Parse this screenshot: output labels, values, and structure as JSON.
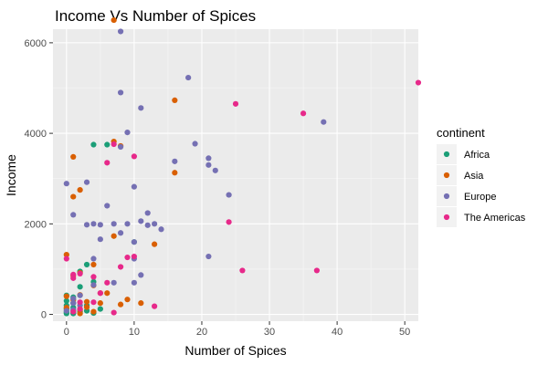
{
  "chart_data": {
    "type": "scatter",
    "title": "Income Vs Number of Spices",
    "xlabel": "Number of Spices",
    "ylabel": "Income",
    "xlim": [
      -2,
      52
    ],
    "ylim": [
      -150,
      6300
    ],
    "x_ticks": [
      0,
      10,
      20,
      30,
      40,
      50
    ],
    "y_ticks": [
      0,
      2000,
      4000,
      6000
    ],
    "grid": true,
    "legend": {
      "title": "continent",
      "placement": "right"
    },
    "series": [
      {
        "name": "Africa",
        "color": "#1b9e77",
        "points": [
          [
            0,
            50
          ],
          [
            0,
            120
          ],
          [
            0,
            200
          ],
          [
            0,
            300
          ],
          [
            0,
            420
          ],
          [
            0,
            20
          ],
          [
            1,
            30
          ],
          [
            1,
            80
          ],
          [
            1,
            150
          ],
          [
            1,
            250
          ],
          [
            1,
            380
          ],
          [
            1,
            20
          ],
          [
            2,
            60
          ],
          [
            2,
            610
          ],
          [
            2,
            950
          ],
          [
            3,
            80
          ],
          [
            3,
            1100
          ],
          [
            3,
            200
          ],
          [
            4,
            720
          ],
          [
            4,
            3750
          ],
          [
            4,
            30
          ],
          [
            5,
            120
          ],
          [
            6,
            3750
          ],
          [
            10,
            1600
          ]
        ]
      },
      {
        "name": "Asia",
        "color": "#d95f02",
        "points": [
          [
            0,
            1320
          ],
          [
            0,
            400
          ],
          [
            0,
            150
          ],
          [
            1,
            3480
          ],
          [
            1,
            2600
          ],
          [
            1,
            850
          ],
          [
            1,
            320
          ],
          [
            2,
            2750
          ],
          [
            2,
            920
          ],
          [
            2,
            430
          ],
          [
            2,
            100
          ],
          [
            2,
            20
          ],
          [
            3,
            280
          ],
          [
            3,
            160
          ],
          [
            4,
            1100
          ],
          [
            4,
            640
          ],
          [
            4,
            60
          ],
          [
            5,
            470
          ],
          [
            5,
            250
          ],
          [
            6,
            470
          ],
          [
            7,
            6500
          ],
          [
            7,
            3820
          ],
          [
            7,
            1730
          ],
          [
            8,
            3720
          ],
          [
            8,
            220
          ],
          [
            9,
            330
          ],
          [
            11,
            250
          ],
          [
            13,
            1550
          ],
          [
            16,
            4730
          ],
          [
            16,
            3130
          ]
        ]
      },
      {
        "name": "Europe",
        "color": "#7570b3",
        "points": [
          [
            0,
            2890
          ],
          [
            0,
            80
          ],
          [
            1,
            2200
          ],
          [
            1,
            350
          ],
          [
            1,
            250
          ],
          [
            1,
            100
          ],
          [
            2,
            420
          ],
          [
            2,
            200
          ],
          [
            3,
            2920
          ],
          [
            3,
            1980
          ],
          [
            4,
            1230
          ],
          [
            4,
            2000
          ],
          [
            4,
            650
          ],
          [
            5,
            1660
          ],
          [
            5,
            1980
          ],
          [
            6,
            2400
          ],
          [
            7,
            2000
          ],
          [
            7,
            700
          ],
          [
            8,
            6250
          ],
          [
            8,
            4900
          ],
          [
            8,
            3700
          ],
          [
            8,
            1800
          ],
          [
            9,
            4020
          ],
          [
            9,
            2000
          ],
          [
            10,
            2820
          ],
          [
            10,
            1600
          ],
          [
            10,
            1230
          ],
          [
            10,
            700
          ],
          [
            11,
            4560
          ],
          [
            11,
            2060
          ],
          [
            11,
            870
          ],
          [
            12,
            2240
          ],
          [
            12,
            1970
          ],
          [
            13,
            2000
          ],
          [
            14,
            1880
          ],
          [
            16,
            3380
          ],
          [
            18,
            5230
          ],
          [
            19,
            3770
          ],
          [
            21,
            3450
          ],
          [
            21,
            3300
          ],
          [
            21,
            1280
          ],
          [
            22,
            3180
          ],
          [
            24,
            2640
          ],
          [
            38,
            4250
          ]
        ]
      },
      {
        "name": "The Americas",
        "color": "#e7298a",
        "points": [
          [
            0,
            1230
          ],
          [
            1,
            880
          ],
          [
            1,
            800
          ],
          [
            1,
            60
          ],
          [
            2,
            900
          ],
          [
            2,
            270
          ],
          [
            2,
            120
          ],
          [
            4,
            830
          ],
          [
            4,
            270
          ],
          [
            5,
            470
          ],
          [
            6,
            3350
          ],
          [
            6,
            700
          ],
          [
            7,
            3760
          ],
          [
            7,
            40
          ],
          [
            8,
            1050
          ],
          [
            9,
            1260
          ],
          [
            10,
            3490
          ],
          [
            10,
            1280
          ],
          [
            13,
            180
          ],
          [
            24,
            2040
          ],
          [
            25,
            4650
          ],
          [
            26,
            970
          ],
          [
            35,
            4440
          ],
          [
            37,
            970
          ],
          [
            52,
            5120
          ]
        ]
      }
    ]
  }
}
